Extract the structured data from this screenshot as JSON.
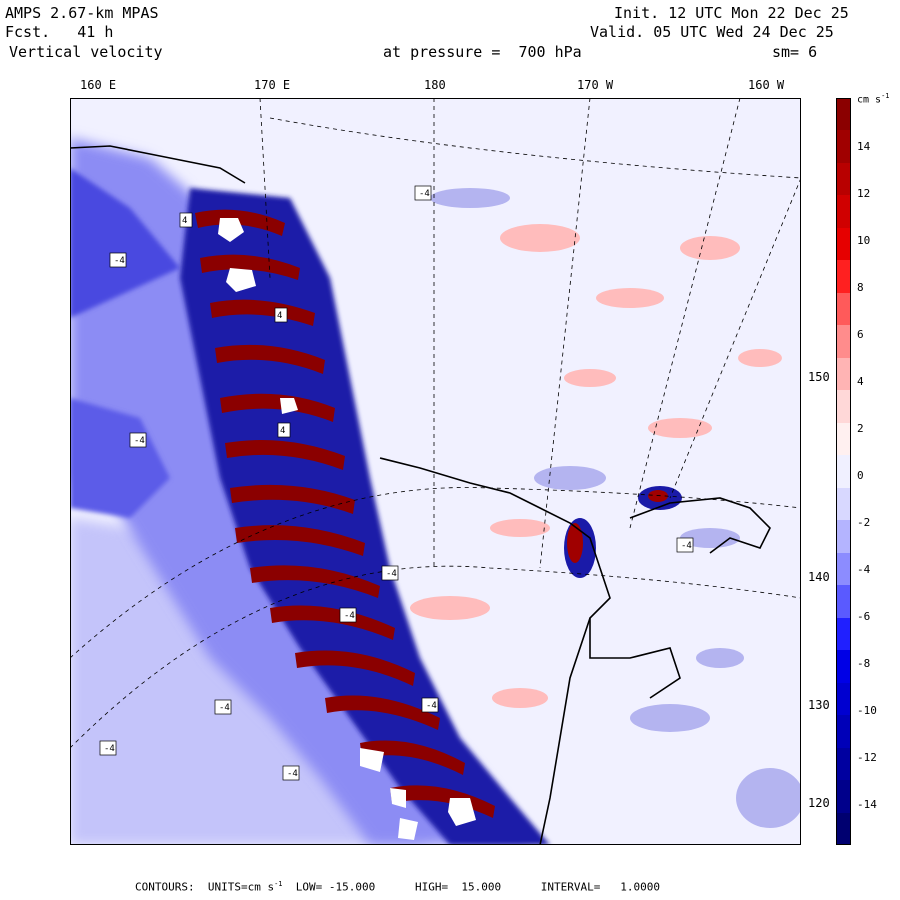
{
  "header": {
    "model": "AMPS 2.67-km MPAS",
    "forecast": "Fcst.   41 h",
    "variable": "Vertical velocity",
    "init": "Init. 12 UTC Mon 22 Dec 25",
    "valid": "Valid. 05 UTC Wed 24 Dec 25",
    "level": "at pressure =  700 hPa",
    "smoothing": "sm= 6"
  },
  "map": {
    "longitude_labels": [
      "160 E",
      "170 E",
      "180",
      "170 W",
      "160 W"
    ],
    "latitude_labels": [
      "150 W",
      "140 W",
      "130 W",
      "120 W"
    ],
    "contour_labels": [
      "-4",
      "-4",
      "-4",
      "-4",
      "-4",
      "-4",
      "-4",
      "-4",
      "-4",
      "-4",
      "4",
      "4",
      "4"
    ]
  },
  "colorbar": {
    "units": "cm s",
    "units_exp": "-1",
    "labels": [
      "14",
      "12",
      "10",
      "8",
      "6",
      "4",
      "2",
      "0",
      "-2",
      "-4",
      "-6",
      "-8",
      "-10",
      "-12",
      "-14"
    ],
    "colors": [
      "#8b0000",
      "#a00000",
      "#b80000",
      "#d00000",
      "#e60000",
      "#ff2020",
      "#ff5a5a",
      "#ff8c8c",
      "#ffb4b4",
      "#ffd8d8",
      "#fff0f0",
      "#f0f0ff",
      "#d8d8ff",
      "#b4b4ff",
      "#8c8cff",
      "#5a5aff",
      "#2020ff",
      "#0000e6",
      "#0000d0",
      "#0000b8",
      "#0000a0",
      "#00008b",
      "#000070"
    ]
  },
  "footer": {
    "text": "CONTOURS:  UNITS=cm s",
    "exp": "-1",
    "rest": "  LOW= -15.000      HIGH=  15.000      INTERVAL=   1.0000"
  }
}
